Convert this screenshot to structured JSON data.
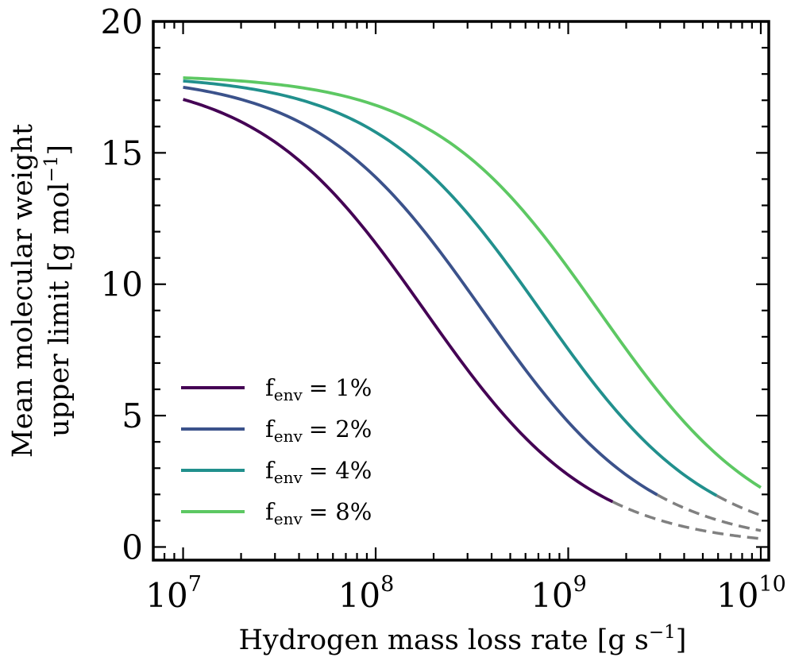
{
  "chart_data": {
    "type": "line",
    "title": "",
    "xlabel": "Hydrogen mass loss rate [g s",
    "xlabel_exp": "−1",
    "xlabel_close": "]",
    "ylabel_line1": "Mean molecular weight",
    "ylabel_line2": "upper limit [g mol",
    "ylabel_exp": "−1",
    "ylabel_close": "]",
    "xscale": "log",
    "xlim": [
      7000000,
      11000000000
    ],
    "ylim": [
      -0.5,
      20
    ],
    "x_ticks": [
      {
        "value": 10000000,
        "base": "10",
        "exp": "7"
      },
      {
        "value": 100000000,
        "base": "10",
        "exp": "8"
      },
      {
        "value": 1000000000,
        "base": "10",
        "exp": "9"
      },
      {
        "value": 10000000000,
        "base": "10",
        "exp": "10"
      }
    ],
    "y_ticks": [
      {
        "value": 0,
        "label": "0"
      },
      {
        "value": 5,
        "label": "5"
      },
      {
        "value": 10,
        "label": "10"
      },
      {
        "value": 15,
        "label": "15"
      },
      {
        "value": 20,
        "label": "20"
      }
    ],
    "legend_position": "lower-left",
    "series": [
      {
        "name": "f",
        "sub": "env",
        "suffix": "= 1%",
        "color": "#440154",
        "ymax": 17.98,
        "x0": 180000000,
        "cutoff": 1700000000,
        "dashed_to": 10000000000
      },
      {
        "name": "f",
        "sub": "env",
        "suffix": "= 2%",
        "color": "#3b528b",
        "ymax": 17.98,
        "x0": 360000000,
        "cutoff": 2900000000,
        "dashed_to": 10000000000
      },
      {
        "name": "f",
        "sub": "env",
        "suffix": "= 4%",
        "color": "#21908d",
        "ymax": 17.98,
        "x0": 720000000,
        "cutoff": 5900000000,
        "dashed_to": 10000000000
      },
      {
        "name": "f",
        "sub": "env",
        "suffix": "= 8%",
        "color": "#5dc863",
        "ymax": 17.98,
        "x0": 1440000000,
        "cutoff": 10000000000,
        "dashed_to": 10000000000
      }
    ],
    "dashed_color": "#808080"
  }
}
